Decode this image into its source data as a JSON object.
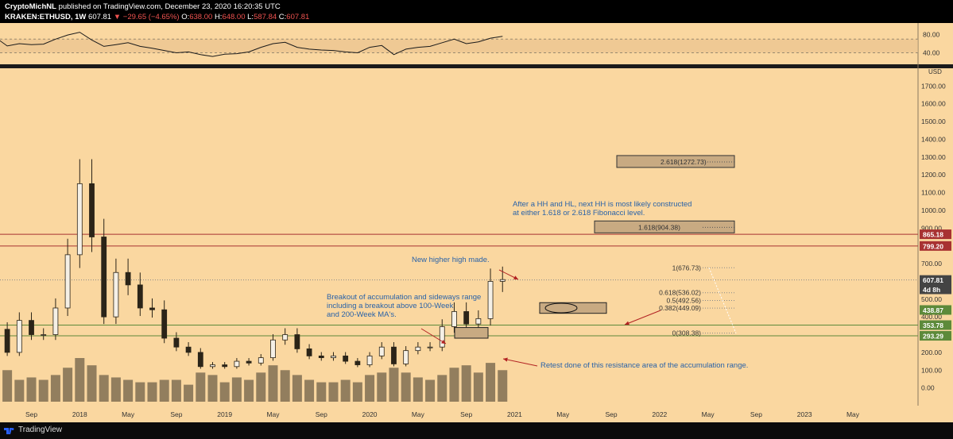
{
  "header": {
    "author": "CryptoMichNL",
    "published": "published on TradingView.com, December 23, 2020 16:20:35 UTC",
    "symbol": "KRAKEN:ETHUSD, 1W",
    "price": "607.81",
    "change": "▼ −29.65 (−4.65%)",
    "o_label": "O:",
    "o_val": "638.00",
    "h_label": "H:",
    "h_val": "648.00",
    "l_label": "L:",
    "l_val": "587.84",
    "c_label": "C:",
    "c_val": "607.81"
  },
  "footer": {
    "brand": "TradingView",
    "logo_icon": "tradingview-logo-icon"
  },
  "colors": {
    "background": "#fad7a0",
    "candle": "#2b2418",
    "volume": "#3d3528",
    "support_line": "#5d8a3a",
    "resistance_line": "#a83232",
    "fib_box": "#c8aa82",
    "annotation_text": "#2962a8",
    "annotation_arrow": "#b22222"
  },
  "chart_data": [
    {
      "type": "line",
      "title": "RSI",
      "ylim": [
        20,
        100
      ],
      "y_ticks": [
        "80.00",
        "40.00"
      ],
      "band": [
        40,
        70
      ],
      "x": [
        "2017-05",
        "2017-06",
        "2017-07",
        "2017-08",
        "2017-09",
        "2017-10",
        "2017-11",
        "2017-12",
        "2018-01",
        "2018-02",
        "2018-03",
        "2018-04",
        "2018-05",
        "2018-06",
        "2018-07",
        "2018-08",
        "2018-09",
        "2018-10",
        "2018-11",
        "2018-12",
        "2019-01",
        "2019-02",
        "2019-03",
        "2019-04",
        "2019-05",
        "2019-06",
        "2019-07",
        "2019-08",
        "2019-09",
        "2019-10",
        "2019-11",
        "2019-12",
        "2020-01",
        "2020-02",
        "2020-03",
        "2020-04",
        "2020-05",
        "2020-06",
        "2020-07",
        "2020-08",
        "2020-09",
        "2020-10",
        "2020-11",
        "2020-12"
      ],
      "values": [
        78,
        74,
        55,
        60,
        58,
        59,
        70,
        79,
        85,
        68,
        54,
        58,
        62,
        54,
        50,
        45,
        40,
        42,
        36,
        32,
        37,
        38,
        42,
        52,
        60,
        63,
        52,
        48,
        46,
        45,
        42,
        40,
        52,
        56,
        36,
        48,
        52,
        54,
        62,
        70,
        60,
        64,
        72,
        76
      ]
    },
    {
      "type": "candlestick",
      "title": "KRAKEN:ETHUSD, 1W",
      "ylabel": "USD",
      "ylim": [
        -100,
        1800
      ],
      "y_ticks": [
        "1700.00",
        "1600.00",
        "1500.00",
        "1400.00",
        "1300.00",
        "1200.00",
        "1100.00",
        "1000.00",
        "900.00",
        "800.00",
        "700.00",
        "600.00",
        "500.00",
        "400.00",
        "300.00",
        "200.00",
        "100.00",
        "0.00"
      ],
      "x_ticks": [
        "Sep",
        "2018",
        "May",
        "Sep",
        "2019",
        "May",
        "Sep",
        "2020",
        "May",
        "Sep",
        "2021",
        "May",
        "Sep",
        "2022",
        "May",
        "Sep",
        "2023",
        "May"
      ],
      "x_tick_dates": [
        "2017-09",
        "2018-01",
        "2018-05",
        "2018-09",
        "2019-01",
        "2019-05",
        "2019-09",
        "2020-01",
        "2020-05",
        "2020-09",
        "2021-01",
        "2021-05",
        "2021-09",
        "2022-01",
        "2022-05",
        "2022-09",
        "2023-01",
        "2023-05"
      ],
      "close_series": {
        "x": [
          "2017-05",
          "2017-06",
          "2017-07",
          "2017-08",
          "2017-09",
          "2017-10",
          "2017-11",
          "2017-12",
          "2018-01",
          "2018-02",
          "2018-03",
          "2018-04",
          "2018-05",
          "2018-06",
          "2018-07",
          "2018-08",
          "2018-09",
          "2018-10",
          "2018-11",
          "2018-12",
          "2019-01",
          "2019-02",
          "2019-03",
          "2019-04",
          "2019-05",
          "2019-06",
          "2019-07",
          "2019-08",
          "2019-09",
          "2019-10",
          "2019-11",
          "2019-12",
          "2020-01",
          "2020-02",
          "2020-03",
          "2020-04",
          "2020-05",
          "2020-06",
          "2020-07",
          "2020-08",
          "2020-09",
          "2020-10",
          "2020-11",
          "2020-12"
        ],
        "values": [
          230,
          330,
          200,
          380,
          300,
          300,
          450,
          750,
          1150,
          850,
          400,
          650,
          580,
          450,
          440,
          280,
          230,
          200,
          120,
          130,
          120,
          150,
          140,
          170,
          270,
          300,
          220,
          180,
          170,
          180,
          150,
          130,
          180,
          230,
          135,
          210,
          230,
          230,
          345,
          430,
          360,
          390,
          600,
          610
        ]
      },
      "volume": [
        40,
        55,
        65,
        45,
        50,
        45,
        55,
        70,
        90,
        75,
        55,
        50,
        45,
        40,
        40,
        45,
        45,
        35,
        60,
        55,
        40,
        50,
        45,
        60,
        75,
        65,
        55,
        45,
        40,
        40,
        45,
        40,
        55,
        60,
        70,
        60,
        50,
        45,
        55,
        70,
        75,
        60,
        80,
        65
      ],
      "price_labels": [
        {
          "text": "865.18",
          "value": 865.18,
          "color": "#a83232"
        },
        {
          "text": "799.20",
          "value": 799.2,
          "color": "#a83232"
        },
        {
          "text": "607.81",
          "value": 607.81,
          "color": "#444444"
        },
        {
          "text": "4d 8h",
          "value": 555,
          "color": "#444444"
        },
        {
          "text": "438.87",
          "value": 438.87,
          "color": "#5d8a3a"
        },
        {
          "text": "353.78",
          "value": 353.78,
          "color": "#5d8a3a"
        },
        {
          "text": "293.29",
          "value": 293.29,
          "color": "#5d8a3a"
        }
      ],
      "horizontal_lines": [
        {
          "value": 865.18,
          "color": "#a83232"
        },
        {
          "value": 799.2,
          "color": "#a83232"
        },
        {
          "value": 353.78,
          "color": "#5d8a3a"
        },
        {
          "value": 293.29,
          "color": "#5d8a3a"
        }
      ],
      "fib_levels": [
        {
          "label": "2.618(1272.73)",
          "value": 1272.73,
          "boxed": true
        },
        {
          "label": "1.618(904.38)",
          "value": 904.38,
          "boxed": true
        },
        {
          "label": "1(676.73)",
          "value": 676.73
        },
        {
          "label": "0.618(536.02)",
          "value": 536.02
        },
        {
          "label": "0.5(492.56)",
          "value": 492.56
        },
        {
          "label": "0.382(449.09)",
          "value": 449.09
        },
        {
          "label": "0(308.38)",
          "value": 308.38
        }
      ],
      "annotations": [
        {
          "lines": [
            "After a HH and HL, next HH is most likely constructed",
            "at either 1.618 or 2.618 Fibonacci level."
          ]
        },
        {
          "lines": [
            "New higher high made."
          ]
        },
        {
          "lines": [
            "Breakout of accumulation and sideways range",
            "including a breakout above 100-Week",
            "and 200-Week MA's."
          ]
        },
        {
          "lines": [
            "Retest done of this resistance area of the accumulation range."
          ]
        }
      ]
    }
  ]
}
